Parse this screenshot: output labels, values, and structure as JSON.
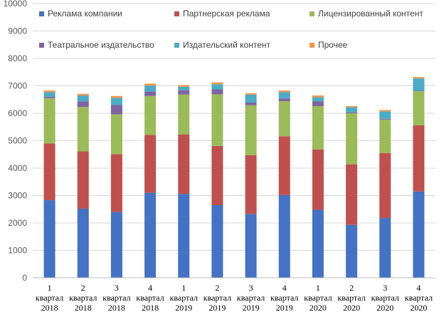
{
  "chart_data": {
    "type": "bar",
    "stacked": true,
    "ylim": [
      0,
      10000
    ],
    "y_ticks": [
      0,
      1000,
      2000,
      3000,
      4000,
      5000,
      6000,
      7000,
      8000,
      9000,
      10000
    ],
    "grid": true,
    "legend_position": "top",
    "categories": [
      [
        "1",
        "квартал",
        "2018"
      ],
      [
        "2",
        "квартал",
        "2018"
      ],
      [
        "3",
        "квартал",
        "2018"
      ],
      [
        "4",
        "квартал",
        "2018"
      ],
      [
        "1",
        "квартал",
        "2019"
      ],
      [
        "2",
        "квартал",
        "2019"
      ],
      [
        "3",
        "квартал",
        "2019"
      ],
      [
        "4",
        "квартал",
        "2019"
      ],
      [
        "1",
        "квартал",
        "2020"
      ],
      [
        "2",
        "квартал",
        "2020"
      ],
      [
        "3",
        "квартал",
        "2020"
      ],
      [
        "4",
        "квартал",
        "2020"
      ]
    ],
    "series": [
      {
        "name": "Реклама компании",
        "color": "#4472c4",
        "values": [
          2830,
          2520,
          2400,
          3100,
          3060,
          2650,
          2330,
          3020,
          2480,
          1930,
          2180,
          3150
        ]
      },
      {
        "name": "Партнерская реклама",
        "color": "#c0504d",
        "values": [
          2070,
          2090,
          2110,
          2110,
          2170,
          2160,
          2140,
          2140,
          2200,
          2210,
          2370,
          2410
        ]
      },
      {
        "name": "Лицензированный контент",
        "color": "#9bbb59",
        "values": [
          1650,
          1620,
          1450,
          1420,
          1450,
          1880,
          1820,
          1280,
          1580,
          1860,
          1220,
          1240
        ]
      },
      {
        "name": "Театральное издательство",
        "color": "#8064a2",
        "values": [
          50,
          200,
          340,
          160,
          160,
          180,
          100,
          100,
          170,
          30,
          30,
          20
        ]
      },
      {
        "name": "Издательский контент",
        "color": "#4bacc6",
        "values": [
          170,
          220,
          260,
          220,
          130,
          190,
          290,
          230,
          160,
          190,
          270,
          450
        ]
      },
      {
        "name": "Прочее",
        "color": "#f79646",
        "values": [
          60,
          60,
          70,
          70,
          60,
          70,
          50,
          60,
          60,
          40,
          50,
          50
        ]
      }
    ]
  }
}
